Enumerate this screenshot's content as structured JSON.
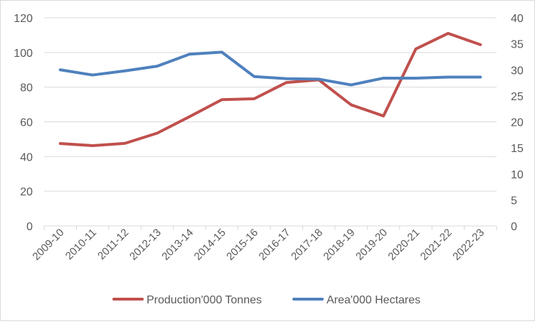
{
  "chart_data": {
    "type": "line",
    "categories": [
      "2009-10",
      "2010-11",
      "2011-12",
      "2012-13",
      "2013-14",
      "2014-15",
      "2015-16",
      "2016-17",
      "2017-18",
      "2018-19",
      "2019-20",
      "2020-21",
      "2021-22",
      "2022-23"
    ],
    "series": [
      {
        "name": "Production'000 Tonnes",
        "axis": "left",
        "color": "#c0504d",
        "values": [
          47.5,
          46.3,
          47.6,
          53.5,
          63,
          72.8,
          73.3,
          82.7,
          84.2,
          69.8,
          63.4,
          102,
          111,
          104.5
        ]
      },
      {
        "name": "Area'000 Hectares",
        "axis": "right",
        "color": "#4f81bd",
        "values": [
          30,
          29,
          29.8,
          30.7,
          33,
          33.4,
          28.7,
          28.3,
          28.2,
          27.1,
          28.4,
          28.4,
          28.6,
          28.6
        ]
      }
    ],
    "y_left": {
      "min": 0,
      "max": 120,
      "step": 20,
      "ticks": [
        "0",
        "20",
        "40",
        "60",
        "80",
        "100",
        "120"
      ]
    },
    "y_right": {
      "min": 0,
      "max": 40,
      "step": 5,
      "ticks": [
        "0",
        "5",
        "10",
        "15",
        "20",
        "25",
        "30",
        "35",
        "40"
      ]
    },
    "grid": true,
    "legend_position": "bottom",
    "title": "",
    "xlabel": "",
    "ylabel": ""
  }
}
